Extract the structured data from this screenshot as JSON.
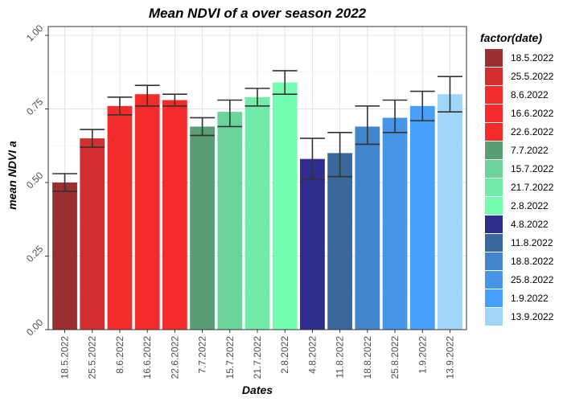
{
  "chart_data": {
    "type": "bar",
    "title": "Mean NDVI of a over season 2022",
    "xlabel": "Dates",
    "ylabel": "mean NDVI a",
    "ylim": [
      0,
      1.03
    ],
    "yticks": [
      "0.00",
      "0.25",
      "0.50",
      "0.75",
      "1.00"
    ],
    "grid": true,
    "legend_title": "factor(date)",
    "legend_position": "right",
    "categories": [
      "18.5.2022",
      "25.5.2022",
      "8.6.2022",
      "16.6.2022",
      "22.6.2022",
      "7.7.2022",
      "15.7.2022",
      "21.7.2022",
      "2.8.2022",
      "4.8.2022",
      "11.8.2022",
      "18.8.2022",
      "25.8.2022",
      "1.9.2022",
      "13.9.2022"
    ],
    "values": [
      0.5,
      0.65,
      0.76,
      0.8,
      0.78,
      0.69,
      0.74,
      0.79,
      0.84,
      0.58,
      0.6,
      0.69,
      0.72,
      0.76,
      0.8
    ],
    "error_low": [
      0.47,
      0.62,
      0.73,
      0.76,
      0.76,
      0.66,
      0.69,
      0.76,
      0.8,
      0.51,
      0.52,
      0.63,
      0.67,
      0.71,
      0.74
    ],
    "error_high": [
      0.53,
      0.68,
      0.79,
      0.83,
      0.8,
      0.72,
      0.78,
      0.82,
      0.88,
      0.65,
      0.67,
      0.76,
      0.78,
      0.81,
      0.86
    ],
    "colors": [
      "#9b2f2f",
      "#d42f2f",
      "#f22c2c",
      "#f52b2b",
      "#f42b2b",
      "#5a9e76",
      "#6bd49a",
      "#72eba9",
      "#74fcb0",
      "#2e2d8e",
      "#3a689c",
      "#4185cc",
      "#4795e7",
      "#49a0fa",
      "#9fd6f9"
    ]
  }
}
